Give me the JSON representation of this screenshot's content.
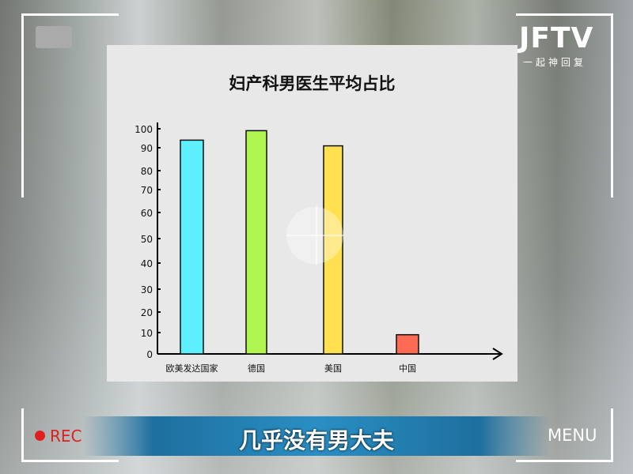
{
  "logo": {
    "brand": "JFTV",
    "slogan": "一起神回复"
  },
  "overlay": {
    "rec": "REC",
    "menu": "MENU",
    "caption": "几乎没有男大夫"
  },
  "chart_data": {
    "type": "bar",
    "title": "妇产科男医生平均占比",
    "categories": [
      "欧美发达国家",
      "德国",
      "美国",
      "中国"
    ],
    "values": [
      94,
      99,
      91,
      9
    ],
    "colors": [
      "#5ef0ff",
      "#b0f550",
      "#ffe050",
      "#ff6a55"
    ],
    "yticks": [
      0,
      10,
      20,
      30,
      40,
      50,
      60,
      70,
      80,
      90,
      100
    ],
    "ylim": [
      0,
      100
    ],
    "xlabel": "",
    "ylabel": "",
    "grid": false
  }
}
